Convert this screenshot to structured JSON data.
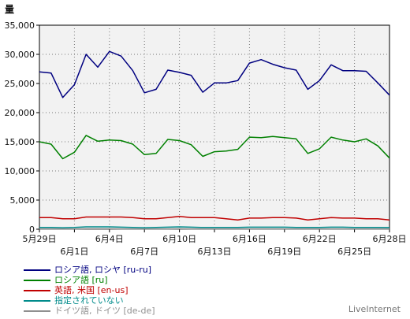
{
  "chart_data": {
    "type": "line",
    "ylabel": "量",
    "ylim": [
      0,
      35000
    ],
    "yticks": [
      "0",
      "5,000",
      "10,000",
      "15,000",
      "20,000",
      "25,000",
      "30,000",
      "35,000"
    ],
    "ytick_values": [
      0,
      5000,
      10000,
      15000,
      20000,
      25000,
      30000,
      35000
    ],
    "x": [
      "5月29日",
      "5月30日",
      "5月31日",
      "6月1日",
      "6月2日",
      "6月3日",
      "6月4日",
      "6月5日",
      "6月6日",
      "6月7日",
      "6月8日",
      "6月9日",
      "6月10日",
      "6月11日",
      "6月12日",
      "6月13日",
      "6月14日",
      "6月15日",
      "6月16日",
      "6月17日",
      "6月18日",
      "6月19日",
      "6月20日",
      "6月21日",
      "6月22日",
      "6月23日",
      "6月24日",
      "6月25日",
      "6月26日",
      "6月27日",
      "6月28日"
    ],
    "xticks_upper": [
      "5月29日",
      "6月4日",
      "6月10日",
      "6月16日",
      "6月22日",
      "6月28日"
    ],
    "xticks_lower": [
      "6月1日",
      "6月7日",
      "6月13日",
      "6月19日",
      "6月25日"
    ],
    "grid": true,
    "legend_position": "bottom",
    "series": [
      {
        "name": "ロシア語, ロシヤ [ru-ru]",
        "color": "#000080",
        "values": [
          27000,
          26800,
          22600,
          24800,
          30000,
          27800,
          30500,
          29700,
          27200,
          23400,
          24000,
          27300,
          26900,
          26400,
          23500,
          25100,
          25100,
          25500,
          28500,
          29100,
          28300,
          27700,
          27300,
          24000,
          25500,
          28200,
          27200,
          27200,
          27100,
          25100,
          23000
        ]
      },
      {
        "name": "ロシア語 [ru]",
        "color": "#008000",
        "values": [
          15000,
          14600,
          12100,
          13200,
          16100,
          15100,
          15300,
          15200,
          14600,
          12800,
          13000,
          15400,
          15200,
          14500,
          12500,
          13300,
          13400,
          13700,
          15800,
          15700,
          15900,
          15700,
          15500,
          13000,
          13800,
          15800,
          15300,
          15000,
          15500,
          14300,
          12200
        ]
      },
      {
        "name": "英語, 米国 [en-us]",
        "color": "#c00000",
        "values": [
          2000,
          2000,
          1800,
          1800,
          2100,
          2100,
          2100,
          2100,
          2000,
          1800,
          1800,
          2000,
          2200,
          2000,
          2000,
          2000,
          1800,
          1600,
          1900,
          1900,
          2000,
          2000,
          1900,
          1600,
          1800,
          2000,
          1900,
          1900,
          1800,
          1800,
          1600
        ]
      },
      {
        "name": "指定されていない",
        "color": "#008b8b",
        "values": [
          300,
          300,
          250,
          300,
          400,
          400,
          400,
          350,
          300,
          250,
          300,
          350,
          400,
          350,
          300,
          300,
          300,
          300,
          350,
          350,
          350,
          350,
          300,
          300,
          300,
          350,
          350,
          300,
          300,
          300,
          280
        ]
      },
      {
        "name": "ドイツ語, ドイツ [de-de]",
        "color": "#909090",
        "values": [
          60,
          60,
          50,
          60,
          70,
          70,
          70,
          60,
          60,
          50,
          50,
          60,
          70,
          60,
          60,
          60,
          60,
          50,
          60,
          60,
          60,
          60,
          60,
          50,
          60,
          60,
          60,
          60,
          60,
          60,
          50
        ]
      }
    ]
  },
  "legend": {
    "items": [
      {
        "label": "ロシア語, ロシヤ [ru-ru]",
        "color": "#000080",
        "text_color": "#000080"
      },
      {
        "label": "ロシア語 [ru]",
        "color": "#008000",
        "text_color": "#008000"
      },
      {
        "label": "英語, 米国 [en-us]",
        "color": "#c00000",
        "text_color": "#c00000"
      },
      {
        "label": "指定されていない",
        "color": "#008b8b",
        "text_color": "#008b8b"
      },
      {
        "label": "ドイツ語, ドイツ [de-de]",
        "color": "#909090",
        "text_color": "#909090"
      }
    ]
  },
  "credit": "LiveInternet"
}
